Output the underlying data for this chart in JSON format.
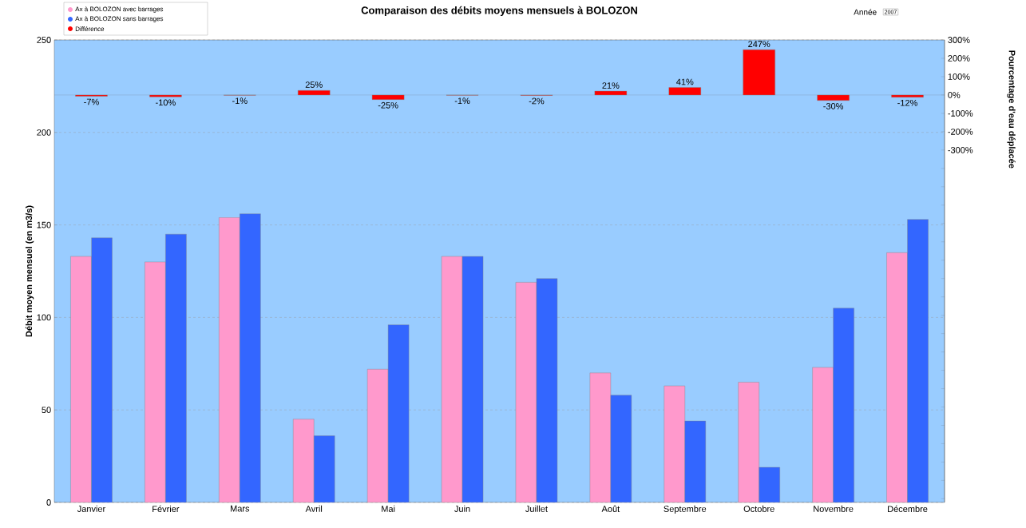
{
  "chart_data": {
    "type": "bar",
    "title": "Comparaison des débits moyens mensuels à BOLOZON",
    "ylabel": "Débit moyen mensuel (en m3/s)",
    "y2label": "Pourcentage d'eau déplacée",
    "categories": [
      "Janvier",
      "Février",
      "Mars",
      "Avril",
      "Mai",
      "Juin",
      "Juillet",
      "Août",
      "Septembre",
      "Octobre",
      "Novembre",
      "Décembre"
    ],
    "series": [
      {
        "name": "Ax à BOLOZON avec barrages",
        "color": "#ff99cc",
        "values": [
          133,
          130,
          154,
          45,
          72,
          133,
          119,
          70,
          63,
          65,
          73,
          135
        ]
      },
      {
        "name": "Ax à BOLOZON sans barrages",
        "color": "#3366ff",
        "values": [
          143,
          145,
          156,
          36,
          96,
          133,
          121,
          58,
          44,
          19,
          105,
          153
        ]
      },
      {
        "name": "Différence",
        "color": "#ff0000",
        "axis": "y2",
        "values": [
          -7,
          -10,
          -1,
          25,
          -25,
          -1,
          -2,
          21,
          41,
          247,
          -30,
          -12
        ],
        "value_labels": [
          "-7%",
          "-10%",
          "-1%",
          "25%",
          "-25%",
          "-1%",
          "-2%",
          "21%",
          "41%",
          "247%",
          "-30%",
          "-12%"
        ]
      }
    ],
    "ylim": [
      0,
      250
    ],
    "yticks": [
      0,
      50,
      100,
      150,
      200,
      250
    ],
    "y2lim": [
      -2220,
      300
    ],
    "y2ticks": [
      {
        "value": 300,
        "label": "300%"
      },
      {
        "value": 200,
        "label": "200%"
      },
      {
        "value": 100,
        "label": "100%"
      },
      {
        "value": 0,
        "label": "0%"
      },
      {
        "value": -100,
        "label": "-100%"
      },
      {
        "value": -200,
        "label": "-200%"
      },
      {
        "value": -300,
        "label": "-300%"
      },
      {
        "value": -400,
        "label": null
      },
      {
        "value": -500,
        "label": null
      },
      {
        "value": -600,
        "label": null
      },
      {
        "value": -700,
        "label": null
      },
      {
        "value": -800,
        "label": null
      },
      {
        "value": -900,
        "label": null
      },
      {
        "value": -1000,
        "label": null
      },
      {
        "value": -1100,
        "label": null
      },
      {
        "value": -1200,
        "label": null
      },
      {
        "value": -1300,
        "label": null
      },
      {
        "value": -1400,
        "label": null
      },
      {
        "value": -1500,
        "label": null
      },
      {
        "value": -1600,
        "label": null
      },
      {
        "value": -1700,
        "label": null
      },
      {
        "value": -1800,
        "label": null
      },
      {
        "value": -1900,
        "label": null
      },
      {
        "value": -2000,
        "label": null
      },
      {
        "value": -2100,
        "label": null
      },
      {
        "value": -2200,
        "label": null
      }
    ],
    "ref_lines": [
      {
        "axis": "y2",
        "value": 0,
        "color": "#666666"
      }
    ],
    "grid": "y",
    "legend": "top left",
    "annotations": [
      "Année",
      "2007"
    ]
  }
}
